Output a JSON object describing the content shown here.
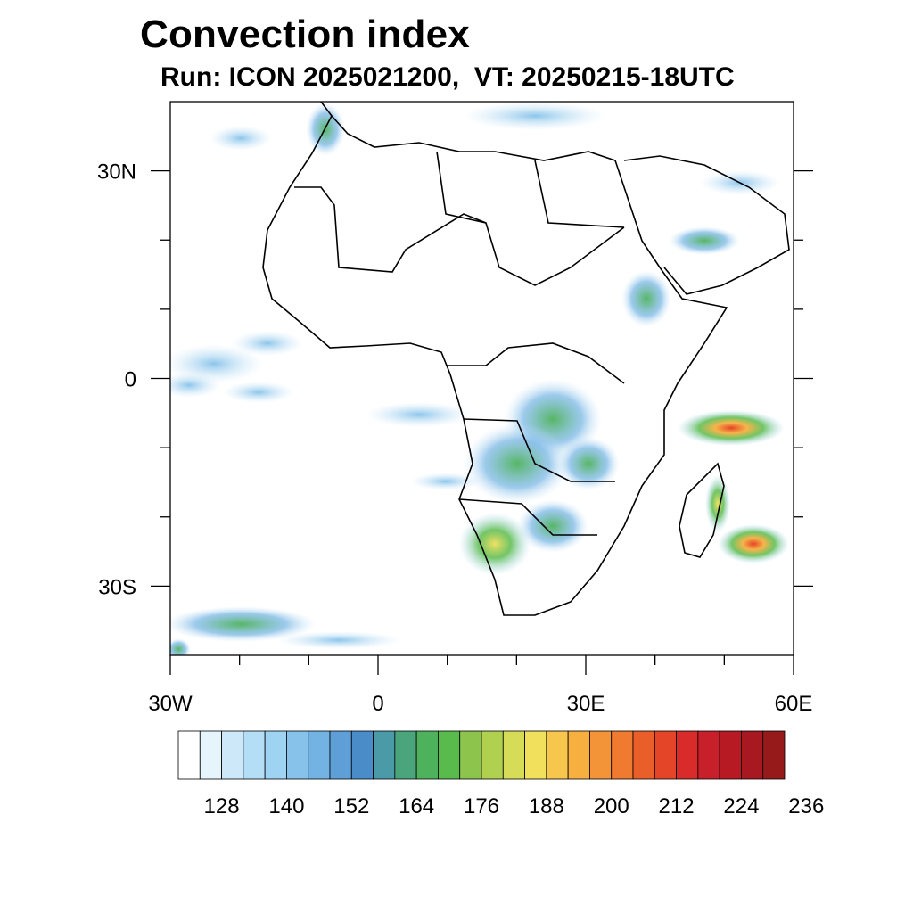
{
  "title": "Convection index",
  "subtitle": "Run: ICON 2025021200,  VT: 20250215-18UTC",
  "map": {
    "region": "Africa",
    "lon_range": [
      -30,
      60
    ],
    "lat_range": [
      -40,
      40
    ],
    "lon_ticks": [
      {
        "value": -30,
        "label": "30W"
      },
      {
        "value": 0,
        "label": "0"
      },
      {
        "value": 30,
        "label": "30E"
      },
      {
        "value": 60,
        "label": "60E"
      }
    ],
    "lat_ticks": [
      {
        "value": 30,
        "label": "30N"
      },
      {
        "value": 0,
        "label": "0"
      },
      {
        "value": -30,
        "label": "30S"
      }
    ],
    "minor_lon_ticks": [
      -20,
      -10,
      10,
      20,
      40,
      50
    ],
    "minor_lat_ticks": [
      20,
      10,
      -10,
      -20
    ]
  },
  "colorbar": {
    "labels": [
      "128",
      "140",
      "152",
      "164",
      "176",
      "188",
      "200",
      "212",
      "224",
      "236"
    ],
    "colors": [
      "#ffffff",
      "#e6f4fc",
      "#cde8f8",
      "#b4def6",
      "#9fd3f2",
      "#86c2ea",
      "#72b3e4",
      "#5e9fd8",
      "#4a8cc8",
      "#4a9aa8",
      "#4aa57c",
      "#4eb25c",
      "#59bb4b",
      "#8dc44c",
      "#b0d050",
      "#d6dc58",
      "#f0e05c",
      "#f7c64c",
      "#f7b040",
      "#f49438",
      "#f07a30",
      "#ea5e2a",
      "#e44428",
      "#d92c2a",
      "#c8202a",
      "#b81a24",
      "#a81820",
      "#961a1a"
    ]
  }
}
